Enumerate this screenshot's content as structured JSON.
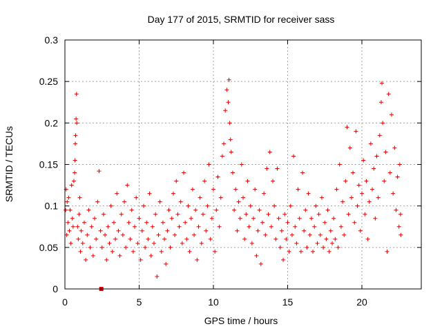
{
  "chart_data": {
    "type": "scatter",
    "title": "Day 177 of 2015, SRMTID for receiver sass",
    "xlabel": "GPS time / hours",
    "ylabel": "SRMTID / TECUs",
    "xlim": [
      0,
      24
    ],
    "ylim": [
      0,
      0.3
    ],
    "xticks": [
      0,
      5,
      10,
      15,
      20
    ],
    "yticks": [
      0,
      0.05,
      0.1,
      0.15,
      0.2,
      0.25,
      0.3
    ],
    "xtick_labels": [
      "0",
      "5",
      "10",
      "15",
      "20"
    ],
    "ytick_labels": [
      "0",
      "0.05",
      "0.1",
      "0.15",
      "0.2",
      "0.25",
      "0.3"
    ],
    "grid": true,
    "marker": "plus",
    "color": "#e00000",
    "series": [
      {
        "name": "SRMTID",
        "points": [
          [
            0.05,
            0.095
          ],
          [
            0.08,
            0.12
          ],
          [
            0.12,
            0.065
          ],
          [
            0.15,
            0.105
          ],
          [
            0.2,
            0.08
          ],
          [
            0.25,
            0.11
          ],
          [
            0.3,
            0.07
          ],
          [
            0.35,
            0.095
          ],
          [
            0.4,
            0.055
          ],
          [
            0.45,
            0.125
          ],
          [
            0.5,
            0.085
          ],
          [
            0.55,
            0.075
          ],
          [
            0.6,
            0.13
          ],
          [
            0.65,
            0.14
          ],
          [
            0.68,
            0.155
          ],
          [
            0.7,
            0.175
          ],
          [
            0.72,
            0.185
          ],
          [
            0.75,
            0.205
          ],
          [
            0.78,
            0.235
          ],
          [
            0.8,
            0.2
          ],
          [
            0.85,
            0.075
          ],
          [
            0.9,
            0.06
          ],
          [
            0.95,
            0.09
          ],
          [
            1.0,
            0.11
          ],
          [
            1.05,
            0.045
          ],
          [
            1.1,
            0.07
          ],
          [
            1.2,
            0.055
          ],
          [
            1.3,
            0.08
          ],
          [
            1.4,
            0.035
          ],
          [
            1.5,
            0.065
          ],
          [
            1.6,
            0.095
          ],
          [
            1.7,
            0.05
          ],
          [
            1.8,
            0.075
          ],
          [
            1.9,
            0.04
          ],
          [
            2.0,
            0.085
          ],
          [
            2.1,
            0.06
          ],
          [
            2.2,
            0.105
          ],
          [
            2.3,
            0.142
          ],
          [
            2.4,
            0.07
          ],
          [
            2.5,
            0.05
          ],
          [
            2.6,
            0.09
          ],
          [
            2.7,
            0.065
          ],
          [
            2.8,
            0.035
          ],
          [
            2.9,
            0.075
          ],
          [
            3.0,
            0.055
          ],
          [
            3.1,
            0.1
          ],
          [
            3.2,
            0.045
          ],
          [
            3.3,
            0.08
          ],
          [
            3.4,
            0.06
          ],
          [
            3.5,
            0.115
          ],
          [
            3.6,
            0.07
          ],
          [
            3.7,
            0.04
          ],
          [
            3.8,
            0.09
          ],
          [
            3.9,
            0.065
          ],
          [
            4.0,
            0.105
          ],
          [
            4.1,
            0.05
          ],
          [
            4.2,
            0.125
          ],
          [
            4.3,
            0.08
          ],
          [
            4.4,
            0.06
          ],
          [
            4.5,
            0.095
          ],
          [
            4.6,
            0.045
          ],
          [
            4.7,
            0.075
          ],
          [
            4.8,
            0.11
          ],
          [
            4.9,
            0.055
          ],
          [
            5.0,
            0.085
          ],
          [
            5.1,
            0.035
          ],
          [
            5.2,
            0.07
          ],
          [
            5.3,
            0.1
          ],
          [
            5.4,
            0.05
          ],
          [
            5.5,
            0.08
          ],
          [
            5.6,
            0.06
          ],
          [
            5.7,
            0.115
          ],
          [
            5.8,
            0.04
          ],
          [
            5.9,
            0.075
          ],
          [
            6.0,
            0.055
          ],
          [
            6.1,
            0.09
          ],
          [
            6.2,
            0.015
          ],
          [
            6.3,
            0.065
          ],
          [
            6.4,
            0.105
          ],
          [
            6.5,
            0.045
          ],
          [
            6.6,
            0.08
          ],
          [
            6.7,
            0.06
          ],
          [
            6.8,
            0.03
          ],
          [
            6.9,
            0.07
          ],
          [
            7.0,
            0.095
          ],
          [
            7.1,
            0.05
          ],
          [
            7.2,
            0.085
          ],
          [
            7.3,
            0.115
          ],
          [
            7.4,
            0.065
          ],
          [
            7.5,
            0.13
          ],
          [
            7.6,
            0.09
          ],
          [
            7.7,
            0.075
          ],
          [
            7.8,
            0.105
          ],
          [
            7.9,
            0.055
          ],
          [
            8.0,
            0.14
          ],
          [
            8.1,
            0.08
          ],
          [
            8.2,
            0.06
          ],
          [
            8.3,
            0.1
          ],
          [
            8.4,
            0.045
          ],
          [
            8.5,
            0.085
          ],
          [
            8.6,
            0.12
          ],
          [
            8.7,
            0.065
          ],
          [
            8.8,
            0.095
          ],
          [
            8.9,
            0.035
          ],
          [
            9.0,
            0.075
          ],
          [
            9.1,
            0.11
          ],
          [
            9.2,
            0.055
          ],
          [
            9.3,
            0.09
          ],
          [
            9.4,
            0.13
          ],
          [
            9.5,
            0.07
          ],
          [
            9.6,
            0.1
          ],
          [
            9.7,
            0.15
          ],
          [
            9.8,
            0.06
          ],
          [
            9.9,
            0.085
          ],
          [
            10.0,
            0.12
          ],
          [
            10.1,
            0.045
          ],
          [
            10.2,
            0.095
          ],
          [
            10.3,
            0.135
          ],
          [
            10.4,
            0.075
          ],
          [
            10.5,
            0.11
          ],
          [
            10.6,
            0.16
          ],
          [
            10.7,
            0.175
          ],
          [
            10.8,
            0.215
          ],
          [
            10.9,
            0.24
          ],
          [
            11.0,
            0.225
          ],
          [
            11.05,
            0.252
          ],
          [
            11.1,
            0.2
          ],
          [
            11.15,
            0.18
          ],
          [
            11.2,
            0.165
          ],
          [
            11.3,
            0.14
          ],
          [
            11.4,
            0.095
          ],
          [
            11.5,
            0.12
          ],
          [
            11.6,
            0.07
          ],
          [
            11.7,
            0.105
          ],
          [
            11.8,
            0.085
          ],
          [
            11.9,
            0.15
          ],
          [
            12.0,
            0.11
          ],
          [
            12.1,
            0.06
          ],
          [
            12.2,
            0.09
          ],
          [
            12.3,
            0.13
          ],
          [
            12.4,
            0.075
          ],
          [
            12.5,
            0.1
          ],
          [
            12.6,
            0.055
          ],
          [
            12.7,
            0.085
          ],
          [
            12.8,
            0.12
          ],
          [
            12.9,
            0.04
          ],
          [
            13.0,
            0.07
          ],
          [
            13.1,
            0.095
          ],
          [
            13.2,
            0.03
          ],
          [
            13.3,
            0.08
          ],
          [
            13.4,
            0.115
          ],
          [
            13.5,
            0.065
          ],
          [
            13.6,
            0.145
          ],
          [
            13.7,
            0.09
          ],
          [
            13.8,
            0.165
          ],
          [
            13.9,
            0.075
          ],
          [
            14.0,
            0.13
          ],
          [
            14.1,
            0.1
          ],
          [
            14.2,
            0.06
          ],
          [
            14.3,
            0.145
          ],
          [
            14.4,
            0.085
          ],
          [
            14.5,
            0.05
          ],
          [
            14.6,
            0.07
          ],
          [
            14.7,
            0.035
          ],
          [
            14.8,
            0.09
          ],
          [
            14.9,
            0.06
          ],
          [
            15.0,
            0.08
          ],
          [
            15.1,
            0.045
          ],
          [
            15.2,
            0.1
          ],
          [
            15.3,
            0.065
          ],
          [
            15.4,
            0.16
          ],
          [
            15.5,
            0.075
          ],
          [
            15.6,
            0.055
          ],
          [
            15.7,
            0.12
          ],
          [
            15.8,
            0.085
          ],
          [
            15.9,
            0.045
          ],
          [
            16.0,
            0.14
          ],
          [
            16.1,
            0.07
          ],
          [
            16.2,
            0.095
          ],
          [
            16.3,
            0.05
          ],
          [
            16.4,
            0.115
          ],
          [
            16.5,
            0.065
          ],
          [
            16.6,
            0.085
          ],
          [
            16.7,
            0.045
          ],
          [
            16.8,
            0.075
          ],
          [
            16.9,
            0.1
          ],
          [
            17.0,
            0.055
          ],
          [
            17.1,
            0.09
          ],
          [
            17.2,
            0.065
          ],
          [
            17.3,
            0.11
          ],
          [
            17.4,
            0.05
          ],
          [
            17.5,
            0.08
          ],
          [
            17.6,
            0.06
          ],
          [
            17.7,
            0.095
          ],
          [
            17.8,
            0.045
          ],
          [
            17.9,
            0.07
          ],
          [
            18.0,
            0.055
          ],
          [
            18.1,
            0.085
          ],
          [
            18.2,
            0.06
          ],
          [
            18.3,
            0.12
          ],
          [
            18.4,
            0.05
          ],
          [
            18.5,
            0.15
          ],
          [
            18.6,
            0.075
          ],
          [
            18.7,
            0.105
          ],
          [
            18.8,
            0.065
          ],
          [
            18.9,
            0.13
          ],
          [
            19.0,
            0.195
          ],
          [
            19.1,
            0.09
          ],
          [
            19.2,
            0.17
          ],
          [
            19.3,
            0.11
          ],
          [
            19.4,
            0.14
          ],
          [
            19.5,
            0.08
          ],
          [
            19.6,
            0.19
          ],
          [
            19.7,
            0.1
          ],
          [
            19.8,
            0.125
          ],
          [
            19.9,
            0.07
          ],
          [
            20.0,
            0.115
          ],
          [
            20.1,
            0.155
          ],
          [
            20.2,
            0.09
          ],
          [
            20.3,
            0.13
          ],
          [
            20.4,
            0.06
          ],
          [
            20.5,
            0.105
          ],
          [
            20.6,
            0.175
          ],
          [
            20.7,
            0.12
          ],
          [
            20.8,
            0.145
          ],
          [
            20.9,
            0.085
          ],
          [
            21.0,
            0.16
          ],
          [
            21.1,
            0.11
          ],
          [
            21.2,
            0.185
          ],
          [
            21.3,
            0.225
          ],
          [
            21.35,
            0.248
          ],
          [
            21.4,
            0.2
          ],
          [
            21.5,
            0.13
          ],
          [
            21.6,
            0.165
          ],
          [
            21.7,
            0.045
          ],
          [
            21.8,
            0.235
          ],
          [
            21.9,
            0.14
          ],
          [
            22.0,
            0.21
          ],
          [
            22.1,
            0.115
          ],
          [
            22.2,
            0.17
          ],
          [
            22.3,
            0.095
          ],
          [
            22.4,
            0.135
          ],
          [
            22.5,
            0.075
          ],
          [
            22.55,
            0.15
          ],
          [
            22.6,
            0.09
          ],
          [
            22.62,
            0.065
          ]
        ]
      }
    ],
    "axis_marker": {
      "x": 2.45,
      "y": 0
    }
  }
}
